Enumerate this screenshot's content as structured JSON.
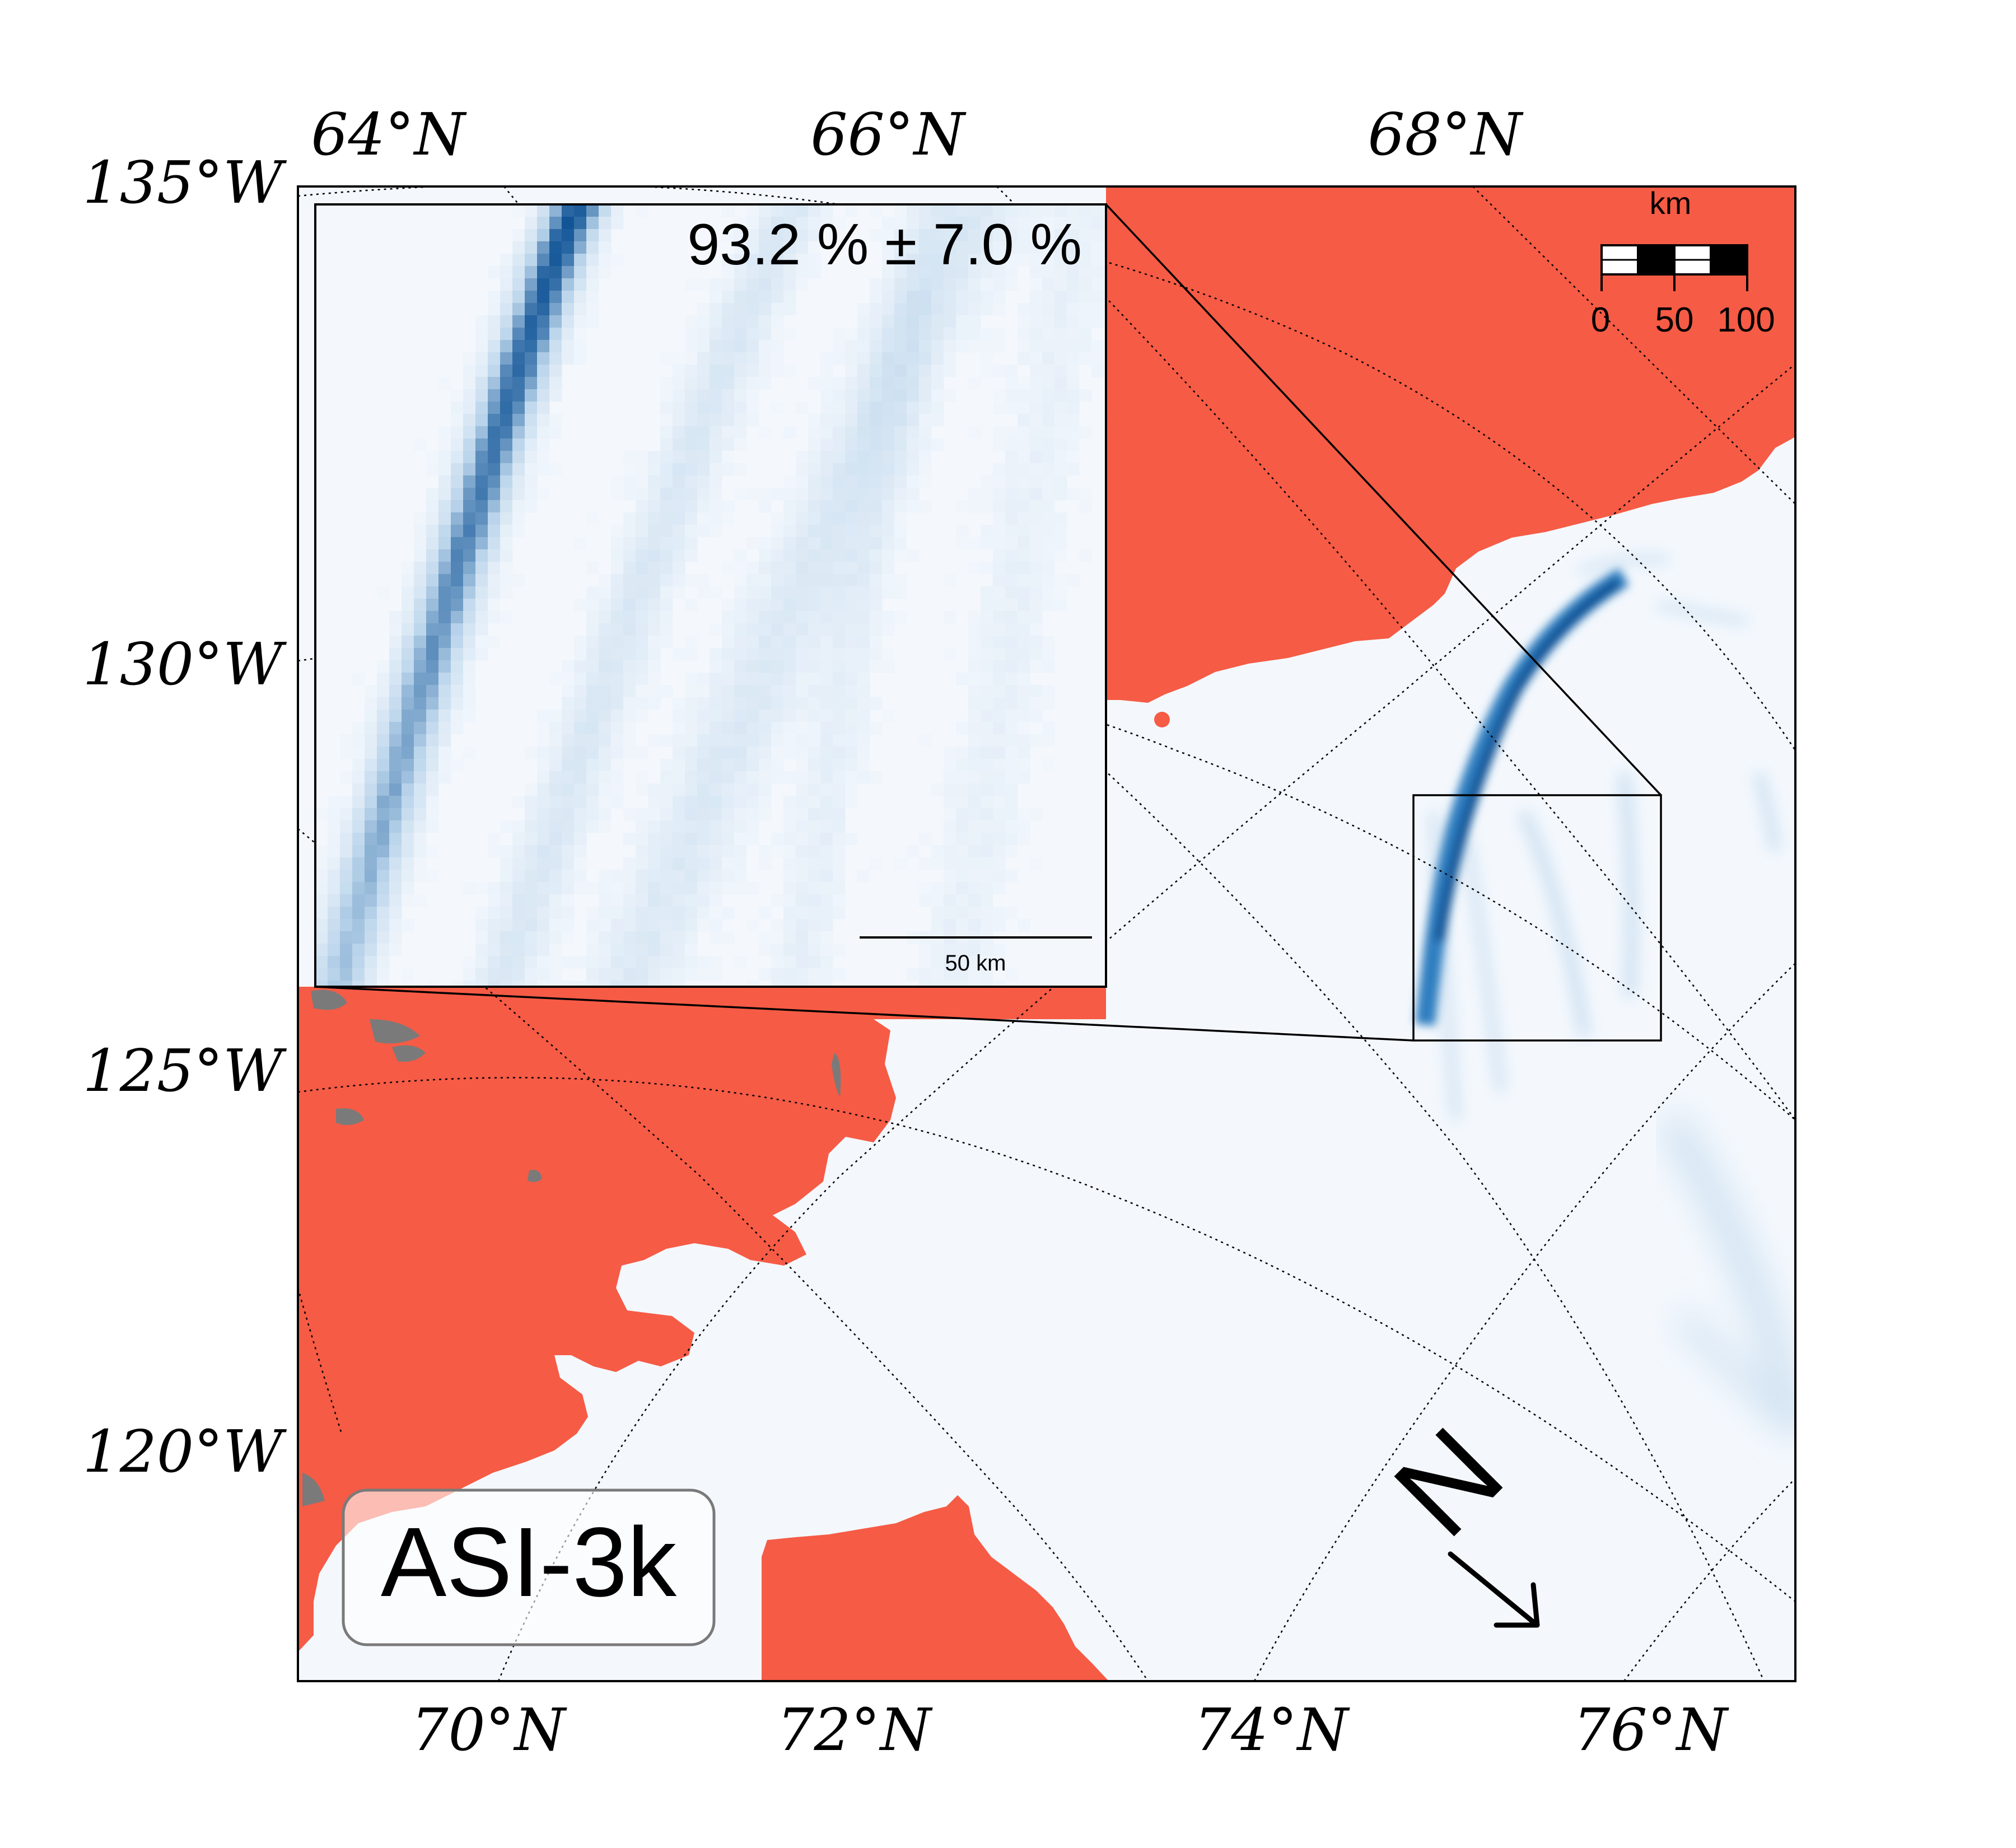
{
  "map": {
    "colors": {
      "land": "#f65b45",
      "ocean": "#f4f8fd",
      "lake": "#7a7a7a",
      "lead_dark": "#0a4f93",
      "lead_mid": "#2f7ec0",
      "lead_light": "#b8d3ea",
      "frame": "#000000"
    },
    "top_lat_labels": [
      "64°N",
      "66°N",
      "68°N"
    ],
    "left_lon_labels": [
      "135°W",
      "130°W",
      "125°W",
      "120°W"
    ],
    "bottom_lat_labels": [
      "70°N",
      "72°N",
      "74°N",
      "76°N"
    ],
    "inset": {
      "stat_text": "93.2 % ± 7.0 %",
      "scalebar_label": "50 km"
    },
    "scale_bar": {
      "unit": "km",
      "ticks": [
        "0",
        "50",
        "100"
      ]
    },
    "north_arrow": {
      "label": "N",
      "icon": "arrow-down-right-icon"
    },
    "product_label": "ASI-3k"
  }
}
